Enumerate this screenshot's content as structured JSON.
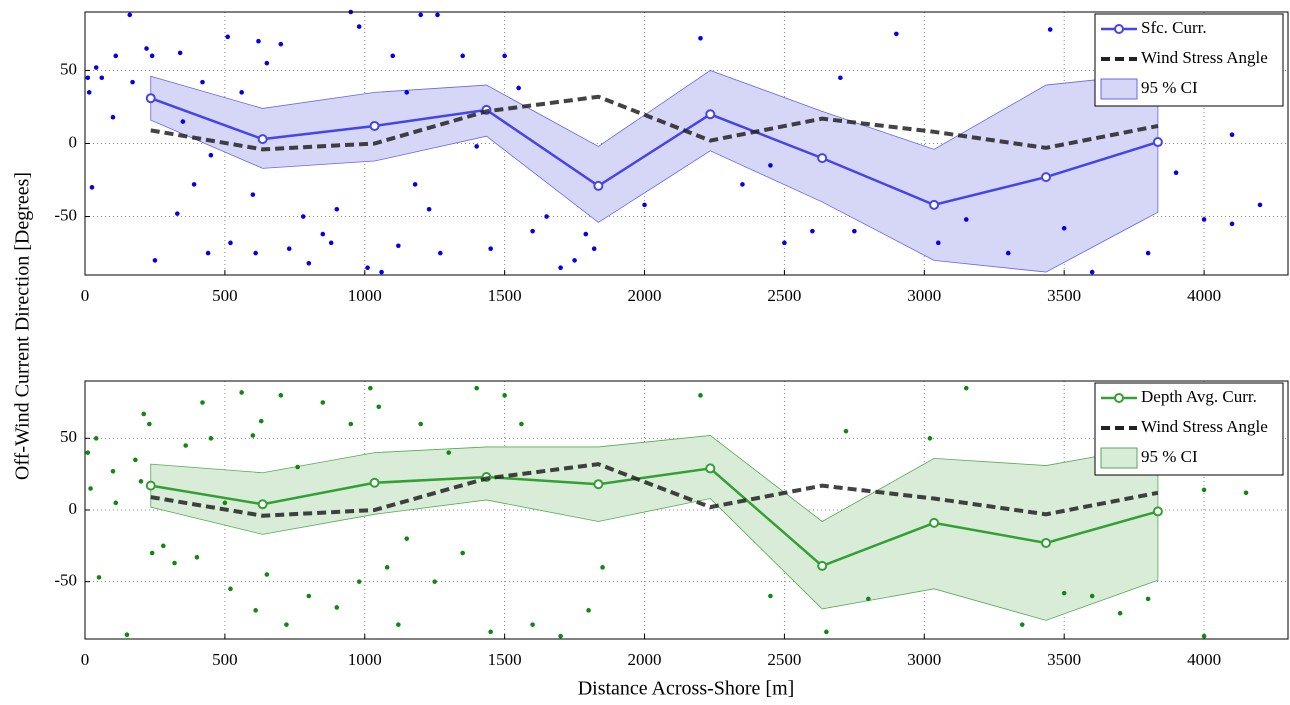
{
  "ylabel": "Off-Wind Current Direction [Degrees]",
  "xlabel": "Distance Across-Shore [m]",
  "chart_data": [
    {
      "type": "line",
      "xlim": [
        0,
        4300
      ],
      "ylim": [
        -90,
        90
      ],
      "xticks": [
        0,
        500,
        1000,
        1500,
        2000,
        2500,
        3000,
        3500,
        4000
      ],
      "yticks": [
        -50,
        0,
        50
      ],
      "grid": true,
      "legend": "upper right",
      "scatter": {
        "color": "#0000ee",
        "x": [
          10,
          15,
          25,
          40,
          60,
          100,
          110,
          160,
          170,
          220,
          240,
          250,
          330,
          340,
          350,
          390,
          420,
          440,
          450,
          510,
          520,
          560,
          600,
          610,
          620,
          650,
          700,
          730,
          780,
          800,
          850,
          880,
          900,
          950,
          980,
          1010,
          1060,
          1100,
          1120,
          1150,
          1180,
          1200,
          1230,
          1260,
          1270,
          1350,
          1400,
          1450,
          1500,
          1550,
          1600,
          1650,
          1700,
          1750,
          1790,
          1820,
          2000,
          2200,
          2350,
          2450,
          2500,
          2600,
          2700,
          2750,
          2900,
          3050,
          3150,
          3300,
          3450,
          3500,
          3600,
          3800,
          3900,
          4000,
          4100,
          4100,
          4200
        ],
        "y": [
          45,
          35,
          -30,
          52,
          45,
          18,
          60,
          88,
          42,
          65,
          60,
          -80,
          -48,
          62,
          15,
          -28,
          42,
          -75,
          -8,
          73,
          -68,
          35,
          -35,
          -75,
          70,
          55,
          68,
          -72,
          -50,
          -82,
          -62,
          -68,
          -45,
          90,
          80,
          -85,
          -88,
          60,
          -70,
          35,
          -28,
          88,
          -45,
          88,
          -75,
          60,
          -2,
          -72,
          60,
          38,
          -60,
          -50,
          -85,
          -80,
          -62,
          -72,
          -42,
          72,
          -28,
          -15,
          -68,
          -60,
          45,
          -60,
          75,
          -68,
          -52,
          -75,
          78,
          -58,
          -88,
          -75,
          -20,
          -52,
          6,
          -55,
          -42
        ]
      },
      "x": [
        235,
        635,
        1035,
        1435,
        1835,
        2235,
        2635,
        3035,
        3435,
        3835
      ],
      "series": [
        {
          "name": "Sfc. Curr.",
          "color": "#4444ee",
          "style": "solid",
          "markers": true,
          "values": [
            31,
            3,
            12,
            23,
            -29,
            20,
            -10,
            -42,
            -23,
            1
          ]
        },
        {
          "name": "Wind Stress Angle",
          "color": "#222222",
          "style": "dashed",
          "markers": false,
          "values": [
            9,
            -4,
            0,
            22,
            32,
            2,
            17,
            8,
            -3,
            12
          ]
        }
      ],
      "band": {
        "name": "95 % CI",
        "color": "#d6d6f7",
        "edge": "#6666ee",
        "upper": [
          46,
          24,
          35,
          40,
          -2,
          50,
          22,
          -4,
          40,
          48
        ],
        "lower": [
          16,
          -17,
          -12,
          5,
          -54,
          -5,
          -40,
          -80,
          -88,
          -47
        ]
      }
    },
    {
      "type": "line",
      "xlim": [
        0,
        4300
      ],
      "ylim": [
        -90,
        90
      ],
      "xticks": [
        0,
        500,
        1000,
        1500,
        2000,
        2500,
        3000,
        3500,
        4000
      ],
      "yticks": [
        -50,
        0,
        50
      ],
      "grid": true,
      "legend": "upper right",
      "scatter": {
        "color": "#118811",
        "x": [
          10,
          20,
          40,
          50,
          100,
          110,
          150,
          180,
          200,
          210,
          230,
          240,
          280,
          320,
          360,
          400,
          420,
          450,
          500,
          520,
          560,
          600,
          610,
          630,
          650,
          700,
          720,
          760,
          800,
          850,
          900,
          950,
          980,
          1020,
          1050,
          1080,
          1120,
          1150,
          1200,
          1250,
          1300,
          1350,
          1400,
          1450,
          1500,
          1560,
          1600,
          1700,
          1800,
          1850,
          2200,
          2450,
          2650,
          2720,
          2800,
          3020,
          3150,
          3350,
          3500,
          3600,
          3700,
          3800,
          4000,
          4150,
          4000
        ],
        "y": [
          40,
          15,
          50,
          -47,
          27,
          5,
          -87,
          35,
          20,
          67,
          60,
          -30,
          -25,
          -37,
          45,
          -33,
          75,
          50,
          5,
          -55,
          82,
          52,
          -70,
          62,
          -45,
          80,
          -80,
          30,
          -60,
          75,
          -68,
          60,
          -50,
          85,
          72,
          -40,
          -80,
          -20,
          60,
          -50,
          40,
          -30,
          85,
          -85,
          80,
          60,
          -80,
          -88,
          -70,
          -40,
          80,
          -60,
          -85,
          55,
          -62,
          50,
          85,
          -80,
          -58,
          -60,
          -72,
          -62,
          -88,
          12,
          14
        ]
      },
      "x": [
        235,
        635,
        1035,
        1435,
        1835,
        2235,
        2635,
        3035,
        3435,
        3835
      ],
      "series": [
        {
          "name": "Depth Avg. Curr.",
          "color": "#33a033",
          "style": "solid",
          "markers": true,
          "values": [
            17,
            4,
            19,
            23,
            18,
            29,
            -39,
            -9,
            -23,
            -1
          ]
        },
        {
          "name": "Wind Stress Angle",
          "color": "#222222",
          "style": "dashed",
          "markers": false,
          "values": [
            9,
            -4,
            0,
            22,
            32,
            2,
            17,
            8,
            -3,
            12
          ]
        }
      ],
      "band": {
        "name": "95 % CI",
        "color": "#d8ecd8",
        "edge": "#55aa55",
        "upper": [
          32,
          26,
          40,
          44,
          44,
          52,
          -8,
          36,
          31,
          45
        ],
        "lower": [
          2,
          -17,
          -3,
          7,
          -8,
          8,
          -69,
          -55,
          -77,
          -49
        ]
      }
    }
  ]
}
